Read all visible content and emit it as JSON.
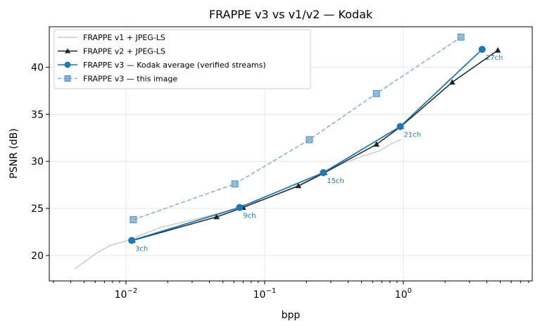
{
  "chart_data": {
    "type": "line",
    "title": "FRAPPE v3 vs v1/v2 — Kodak",
    "xlabel": "bpp",
    "ylabel": "PSNR (dB)",
    "xscale": "log",
    "xlim": [
      0.0028,
      8.5
    ],
    "ylim": [
      17.3,
      44.3
    ],
    "grid": true,
    "legend_position": "top-left",
    "x_ticks": [
      {
        "value": 0.01,
        "base": "10",
        "exp": "−2"
      },
      {
        "value": 0.1,
        "base": "10",
        "exp": "−1"
      },
      {
        "value": 1,
        "base": "10",
        "exp": "0"
      }
    ],
    "y_ticks": [
      {
        "value": 20,
        "label": "20"
      },
      {
        "value": 25,
        "label": "25"
      },
      {
        "value": 30,
        "label": "30"
      },
      {
        "value": 35,
        "label": "35"
      },
      {
        "value": 40,
        "label": "40"
      }
    ],
    "series": [
      {
        "name": "FRAPPE v1 + JPEG-LS",
        "color": "#c0c0c0",
        "style": "line",
        "marker": "none",
        "x": [
          0.0043,
          0.0062,
          0.0078,
          0.0098,
          0.0112,
          0.0135,
          0.018,
          0.025,
          0.035,
          0.05,
          0.07,
          0.1,
          0.135,
          0.18,
          0.26,
          0.37,
          0.52,
          0.67,
          0.8,
          0.96
        ],
        "y": [
          18.6,
          20.3,
          21.1,
          21.5,
          21.8,
          22.3,
          23.0,
          23.5,
          24.0,
          24.6,
          25.3,
          26.0,
          26.7,
          27.4,
          28.6,
          29.8,
          30.6,
          31.1,
          31.8,
          32.3
        ]
      },
      {
        "name": "FRAPPE v2 + JPEG-LS",
        "color": "#222222",
        "style": "line",
        "marker": "triangle",
        "x": [
          0.0112,
          0.045,
          0.07,
          0.175,
          0.27,
          0.64,
          0.96,
          2.25,
          4.8
        ],
        "y": [
          21.6,
          24.1,
          25.1,
          27.4,
          28.8,
          31.8,
          33.7,
          38.4,
          41.8
        ]
      },
      {
        "name": "FRAPPE v3 — Kodak average (verified streams)",
        "color": "#1f77b4",
        "style": "line",
        "marker": "circle",
        "x": [
          0.011,
          0.066,
          0.265,
          0.95,
          3.7
        ],
        "y": [
          21.6,
          25.1,
          28.8,
          33.7,
          41.9
        ],
        "point_labels": [
          "3ch",
          "9ch",
          "15ch",
          "21ch",
          "27ch"
        ]
      },
      {
        "name": "FRAPPE v3 — this image",
        "color": "#7fb1d4",
        "style": "dashed",
        "marker": "square",
        "x": [
          0.0113,
          0.061,
          0.21,
          0.64,
          2.6
        ],
        "y": [
          23.8,
          27.6,
          32.3,
          37.2,
          43.2
        ]
      }
    ]
  }
}
